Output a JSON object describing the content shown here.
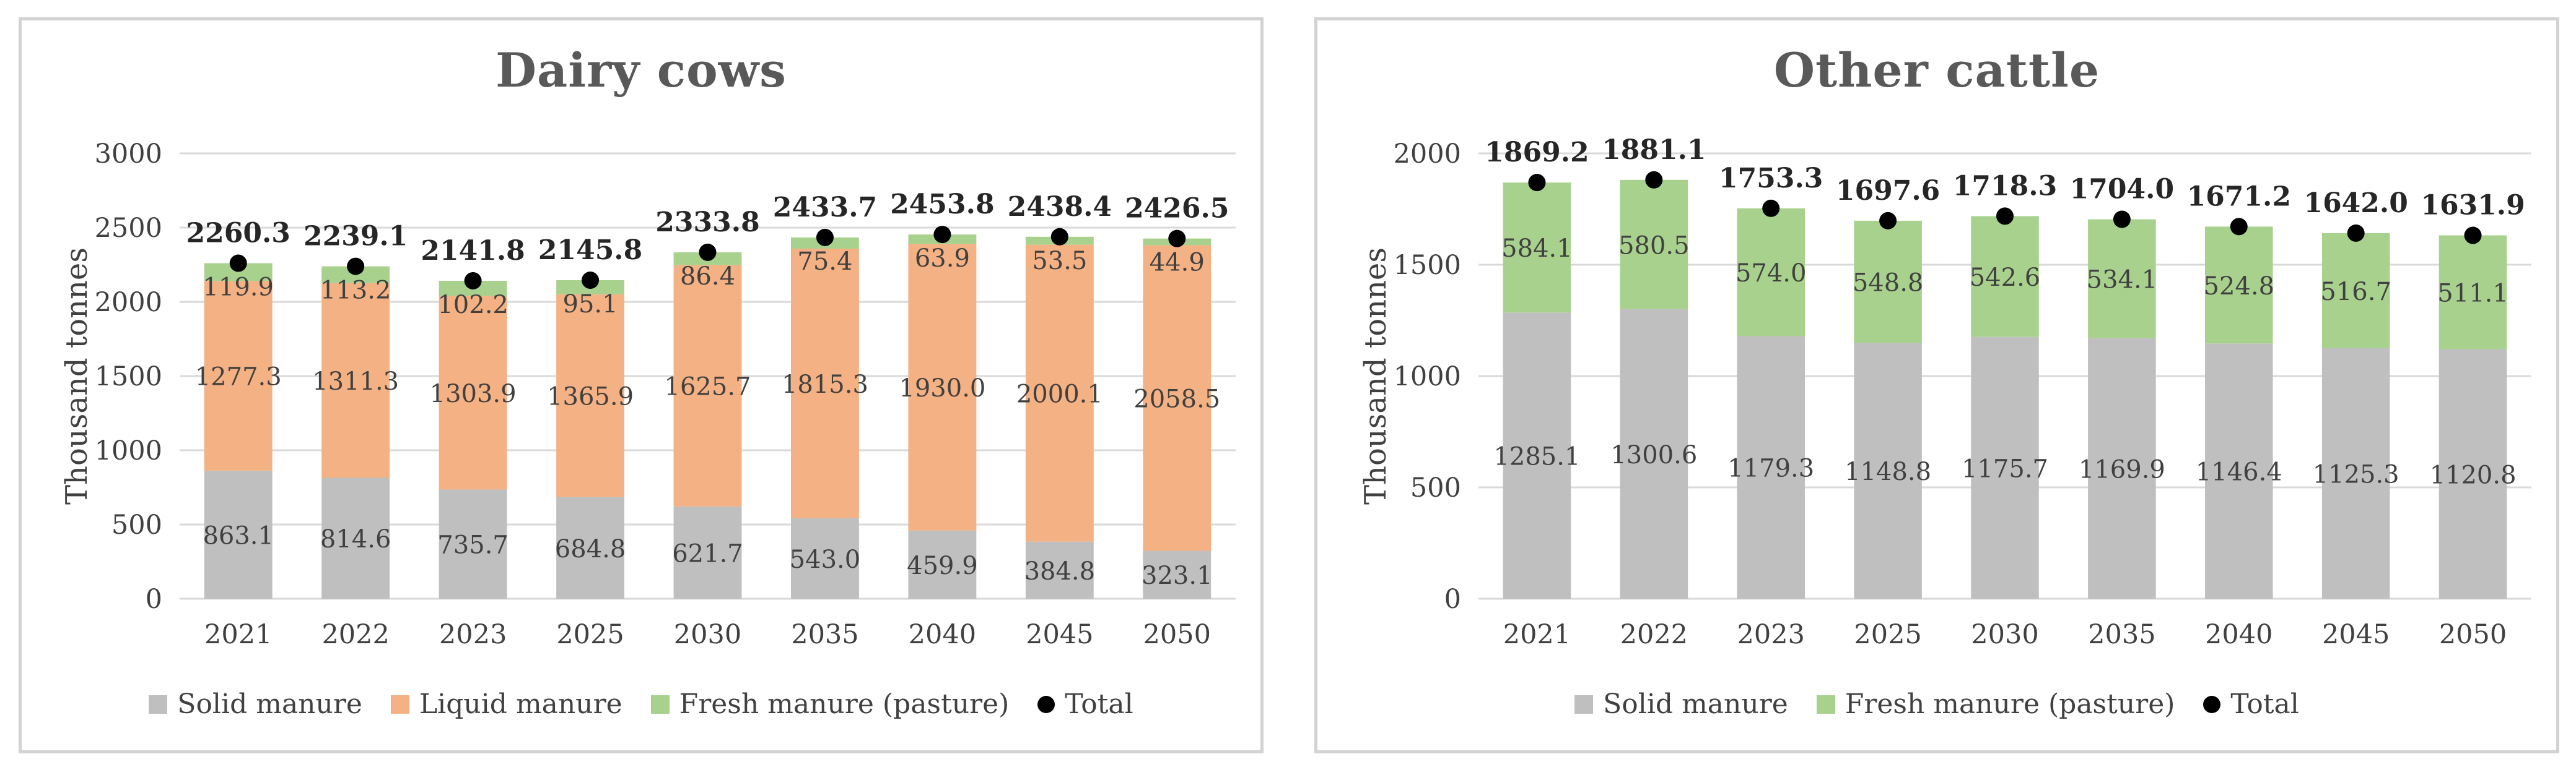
{
  "colors": {
    "solid": "#bfbfbf",
    "liquid": "#f4b183",
    "fresh": "#a9d18e",
    "total": "#000000",
    "grid": "#d9d9d9",
    "text": "#404040"
  },
  "chart_data": [
    {
      "type": "stacked-bar",
      "title": "Dairy cows",
      "ylabel": "Thousand tonnes",
      "ylim": [
        0,
        3000
      ],
      "yticks": [
        0,
        500,
        1000,
        1500,
        2000,
        2500,
        3000
      ],
      "categories": [
        "2021",
        "2022",
        "2023",
        "2025",
        "2030",
        "2035",
        "2040",
        "2045",
        "2050"
      ],
      "series": [
        {
          "name": "Solid manure",
          "color": "#bfbfbf",
          "values": [
            863.1,
            814.6,
            735.7,
            684.8,
            621.7,
            543.0,
            459.9,
            384.8,
            323.1
          ],
          "labels": [
            "863.1",
            "814.6",
            "735.7",
            "684.8",
            "621.7",
            "543.0",
            "459.9",
            "384.8",
            "323.1"
          ]
        },
        {
          "name": "Liquid manure",
          "color": "#f4b183",
          "values": [
            1277.3,
            1311.3,
            1303.9,
            1365.9,
            1625.7,
            1815.3,
            1930.0,
            2000.1,
            2058.5
          ],
          "labels": [
            "1277.3",
            "1311.3",
            "1303.9",
            "1365.9",
            "1625.7",
            "1815.3",
            "1930.0",
            "2000.1",
            "2058.5"
          ]
        },
        {
          "name": "Fresh manure (pasture)",
          "color": "#a9d18e",
          "values": [
            119.9,
            113.2,
            102.2,
            95.1,
            86.4,
            75.4,
            63.9,
            53.5,
            44.9
          ],
          "labels": [
            "119.9",
            "113.2",
            "102.2",
            "95.1",
            "86.4",
            "75.4",
            "63.9",
            "53.5",
            "44.9"
          ]
        }
      ],
      "total": {
        "name": "Total",
        "values": [
          2260.3,
          2239.1,
          2141.8,
          2145.8,
          2333.8,
          2433.7,
          2453.8,
          2438.4,
          2426.5
        ],
        "labels": [
          "2260.3",
          "2239.1",
          "2141.8",
          "2145.8",
          "2333.8",
          "2433.7",
          "2453.8",
          "2438.4",
          "2426.5"
        ]
      },
      "legend": [
        "Solid manure",
        "Liquid manure",
        "Fresh manure (pasture)",
        "Total"
      ]
    },
    {
      "type": "stacked-bar",
      "title": "Other cattle",
      "ylabel": "Thousand tonnes",
      "ylim": [
        0,
        2000
      ],
      "yticks": [
        0,
        500,
        1000,
        1500,
        2000
      ],
      "categories": [
        "2021",
        "2022",
        "2023",
        "2025",
        "2030",
        "2035",
        "2040",
        "2045",
        "2050"
      ],
      "series": [
        {
          "name": "Solid manure",
          "color": "#bfbfbf",
          "values": [
            1285.1,
            1300.6,
            1179.3,
            1148.8,
            1175.7,
            1169.9,
            1146.4,
            1125.3,
            1120.8
          ],
          "labels": [
            "1285.1",
            "1300.6",
            "1179.3",
            "1148.8",
            "1175.7",
            "1169.9",
            "1146.4",
            "1125.3",
            "1120.8"
          ]
        },
        {
          "name": "Fresh manure (pasture)",
          "color": "#a9d18e",
          "values": [
            584.1,
            580.5,
            574.0,
            548.8,
            542.6,
            534.1,
            524.8,
            516.7,
            511.1
          ],
          "labels": [
            "584.1",
            "580.5",
            "574.0",
            "548.8",
            "542.6",
            "534.1",
            "524.8",
            "516.7",
            "511.1"
          ]
        }
      ],
      "total": {
        "name": "Total",
        "values": [
          1869.2,
          1881.1,
          1753.3,
          1697.6,
          1718.3,
          1704.0,
          1671.2,
          1642.0,
          1631.9
        ],
        "labels": [
          "1869.2",
          "1881.1",
          "1753.3",
          "1697.6",
          "1718.3",
          "1704.0",
          "1671.2",
          "1642.0",
          "1631.9"
        ]
      },
      "legend": [
        "Solid manure",
        "Fresh manure (pasture)",
        "Total"
      ]
    }
  ]
}
